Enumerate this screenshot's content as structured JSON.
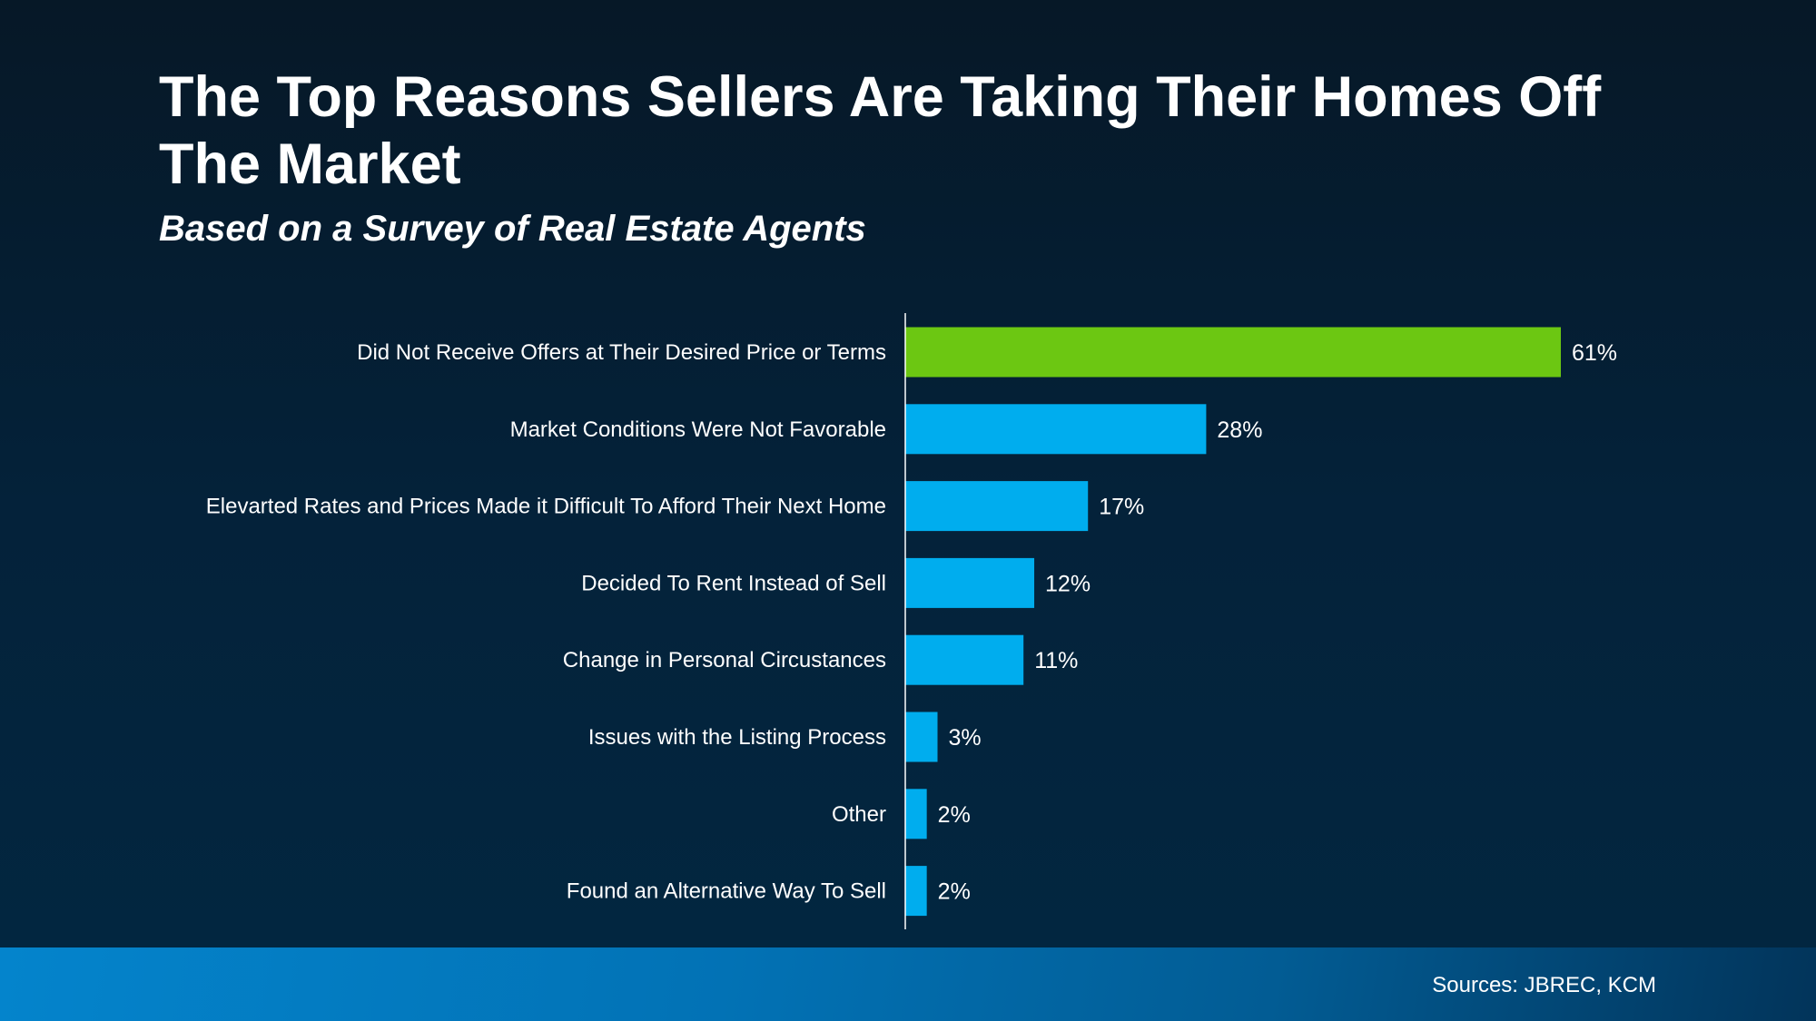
{
  "chart_data": {
    "type": "bar",
    "orientation": "horizontal",
    "title": "The Top Reasons Sellers Are Taking Their Homes Off The Market",
    "subtitle": "Based on a Survey of Real Estate Agents",
    "categories": [
      "Did Not Receive Offers at Their Desired Price or Terms",
      "Market Conditions Were Not Favorable",
      "Elevarted Rates and Prices Made it Difficult To Afford Their Next Home",
      "Decided To Rent Instead of Sell",
      "Change in Personal Circustances",
      "Issues with the Listing Process",
      "Other",
      "Found an Alternative Way To Sell"
    ],
    "values": [
      61,
      28,
      17,
      12,
      11,
      3,
      2,
      2
    ],
    "data_labels": [
      "61%",
      "28%",
      "17%",
      "12%",
      "11%",
      "3%",
      "2%",
      "2%"
    ],
    "unit": "%",
    "xlim": [
      0,
      61
    ],
    "grid": false,
    "legend": "none",
    "colors": {
      "highlight": "#6cc712",
      "bar": "#00adee",
      "axis": "#ffffff"
    }
  },
  "footer": {
    "source": "Sources: JBREC, KCM"
  }
}
